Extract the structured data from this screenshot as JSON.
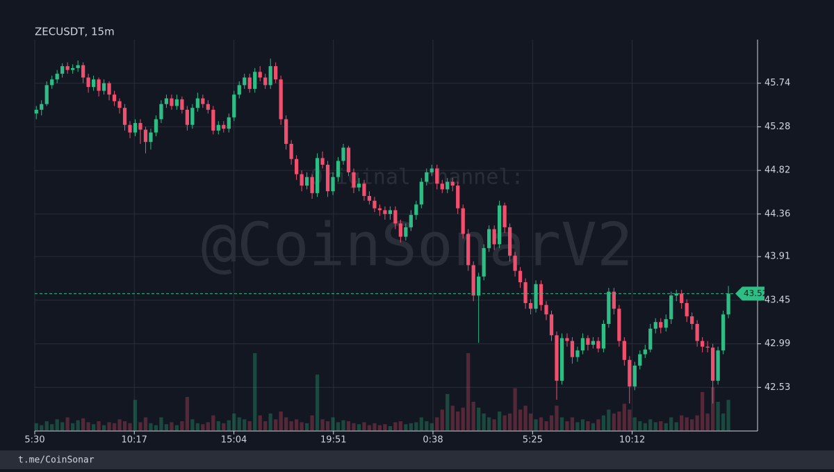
{
  "chart_data": {
    "type": "candlestick",
    "title": "ZECUSDT, 15m",
    "watermark": [
      "Original channel:",
      "@CoinSonarV2"
    ],
    "footer": "t.me/CoinSonar",
    "up_color": "#2ebd85",
    "down_color": "#f0506e",
    "grid": true,
    "ylim": [
      42.07,
      46.2
    ],
    "yticks": [
      42.53,
      42.99,
      43.45,
      43.91,
      44.36,
      44.82,
      45.28,
      45.74
    ],
    "xlim": [
      -0.3,
      138.6
    ],
    "xticks": [
      {
        "value": -0.3,
        "label": "5:30"
      },
      {
        "value": 18.83,
        "label": "10:17"
      },
      {
        "value": 37.97,
        "label": "15:04"
      },
      {
        "value": 57.1,
        "label": "19:51"
      },
      {
        "value": 76.23,
        "label": "0:38"
      },
      {
        "value": 95.37,
        "label": "5:25"
      },
      {
        "value": 114.5,
        "label": "10:12"
      }
    ],
    "volume_ylim": [
      0,
      100
    ],
    "candles": [
      [
        45.42,
        45.5,
        45.36,
        45.46,
        8
      ],
      [
        45.46,
        45.56,
        45.4,
        45.52,
        6
      ],
      [
        45.52,
        45.76,
        45.5,
        45.72,
        10
      ],
      [
        45.72,
        45.82,
        45.68,
        45.78,
        7
      ],
      [
        45.78,
        45.88,
        45.74,
        45.84,
        12
      ],
      [
        45.84,
        45.95,
        45.8,
        45.92,
        9
      ],
      [
        45.92,
        45.96,
        45.84,
        45.88,
        14
      ],
      [
        45.88,
        45.94,
        45.84,
        45.9,
        8
      ],
      [
        45.9,
        45.98,
        45.86,
        45.93,
        11
      ],
      [
        45.93,
        45.96,
        45.74,
        45.8,
        13
      ],
      [
        45.8,
        45.84,
        45.64,
        45.7,
        9
      ],
      [
        45.7,
        45.82,
        45.66,
        45.78,
        7
      ],
      [
        45.78,
        45.8,
        45.6,
        45.66,
        10
      ],
      [
        45.66,
        45.78,
        45.62,
        45.74,
        6
      ],
      [
        45.74,
        45.76,
        45.56,
        45.62,
        9
      ],
      [
        45.62,
        45.66,
        45.5,
        45.55,
        8
      ],
      [
        45.55,
        45.58,
        45.42,
        45.48,
        12
      ],
      [
        45.48,
        45.52,
        45.24,
        45.3,
        10
      ],
      [
        45.3,
        45.34,
        45.16,
        45.22,
        8
      ],
      [
        45.22,
        45.36,
        45.18,
        45.32,
        32
      ],
      [
        45.32,
        45.36,
        45.1,
        45.25,
        9
      ],
      [
        45.25,
        45.28,
        45.0,
        45.12,
        14
      ],
      [
        45.12,
        45.26,
        45.04,
        45.22,
        8
      ],
      [
        45.22,
        45.4,
        45.18,
        45.36,
        6
      ],
      [
        45.36,
        45.56,
        45.32,
        45.52,
        14
      ],
      [
        45.52,
        45.62,
        45.48,
        45.58,
        7
      ],
      [
        45.58,
        45.62,
        45.46,
        45.5,
        9
      ],
      [
        45.5,
        45.62,
        45.46,
        45.57,
        6
      ],
      [
        45.57,
        45.6,
        45.42,
        45.46,
        10
      ],
      [
        45.46,
        45.5,
        45.24,
        45.3,
        35
      ],
      [
        45.3,
        45.52,
        45.26,
        45.48,
        12
      ],
      [
        45.48,
        45.64,
        45.44,
        45.58,
        8
      ],
      [
        45.58,
        45.62,
        45.48,
        45.52,
        7
      ],
      [
        45.52,
        45.56,
        45.42,
        45.46,
        9
      ],
      [
        45.46,
        45.5,
        45.2,
        45.24,
        16
      ],
      [
        45.24,
        45.34,
        45.2,
        45.3,
        10
      ],
      [
        45.3,
        45.34,
        45.22,
        45.26,
        8
      ],
      [
        45.26,
        45.42,
        45.22,
        45.38,
        11
      ],
      [
        45.38,
        45.66,
        45.34,
        45.62,
        18
      ],
      [
        45.62,
        45.76,
        45.58,
        45.72,
        14
      ],
      [
        45.72,
        45.84,
        45.68,
        45.8,
        12
      ],
      [
        45.8,
        45.84,
        45.64,
        45.68,
        10
      ],
      [
        45.68,
        45.9,
        45.64,
        45.86,
        80
      ],
      [
        45.86,
        45.92,
        45.76,
        45.8,
        16
      ],
      [
        45.8,
        45.84,
        45.68,
        45.72,
        10
      ],
      [
        45.72,
        46.0,
        45.68,
        45.92,
        18
      ],
      [
        45.92,
        45.96,
        45.74,
        45.78,
        12
      ],
      [
        45.78,
        45.82,
        45.3,
        45.36,
        20
      ],
      [
        45.36,
        45.4,
        45.04,
        45.1,
        14
      ],
      [
        45.1,
        45.14,
        44.88,
        44.94,
        10
      ],
      [
        44.94,
        44.98,
        44.72,
        44.78,
        12
      ],
      [
        44.78,
        44.82,
        44.6,
        44.66,
        9
      ],
      [
        44.66,
        44.8,
        44.62,
        44.75,
        8
      ],
      [
        44.75,
        44.78,
        44.52,
        44.58,
        16
      ],
      [
        44.58,
        45.0,
        44.54,
        44.95,
        58
      ],
      [
        44.95,
        45.02,
        44.84,
        44.88,
        12
      ],
      [
        44.88,
        44.92,
        44.54,
        44.6,
        10
      ],
      [
        44.6,
        44.8,
        44.56,
        44.75,
        14
      ],
      [
        44.75,
        44.96,
        44.7,
        44.92,
        9
      ],
      [
        44.92,
        45.1,
        44.88,
        45.06,
        11
      ],
      [
        45.06,
        45.08,
        44.76,
        44.8,
        10
      ],
      [
        44.8,
        44.84,
        44.58,
        44.64,
        8
      ],
      [
        44.64,
        44.74,
        44.6,
        44.68,
        7
      ],
      [
        44.68,
        44.72,
        44.5,
        44.55,
        9
      ],
      [
        44.55,
        44.6,
        44.46,
        44.5,
        6
      ],
      [
        44.5,
        44.54,
        44.38,
        44.42,
        8
      ],
      [
        44.42,
        44.46,
        44.34,
        44.4,
        6
      ],
      [
        44.4,
        44.44,
        44.3,
        44.36,
        7
      ],
      [
        44.36,
        44.44,
        44.3,
        44.4,
        5
      ],
      [
        44.4,
        44.44,
        44.2,
        44.26,
        9
      ],
      [
        44.26,
        44.3,
        44.06,
        44.12,
        10
      ],
      [
        44.12,
        44.26,
        44.08,
        44.22,
        7
      ],
      [
        44.22,
        44.4,
        44.18,
        44.35,
        8
      ],
      [
        44.35,
        44.5,
        44.3,
        44.46,
        9
      ],
      [
        44.46,
        44.74,
        44.42,
        44.7,
        14
      ],
      [
        44.7,
        44.84,
        44.66,
        44.8,
        10
      ],
      [
        44.8,
        44.88,
        44.76,
        44.84,
        8
      ],
      [
        44.84,
        44.88,
        44.62,
        44.68,
        14
      ],
      [
        44.68,
        44.72,
        44.58,
        44.62,
        22
      ],
      [
        44.62,
        44.74,
        44.58,
        44.7,
        38
      ],
      [
        44.7,
        44.74,
        44.6,
        44.66,
        26
      ],
      [
        44.66,
        44.7,
        44.36,
        44.42,
        20
      ],
      [
        44.42,
        44.46,
        44.1,
        44.15,
        24
      ],
      [
        44.15,
        44.2,
        43.76,
        43.82,
        80
      ],
      [
        43.82,
        43.86,
        43.44,
        43.5,
        30
      ],
      [
        43.5,
        43.74,
        43.0,
        43.7,
        24
      ],
      [
        43.7,
        44.04,
        43.66,
        44.0,
        18
      ],
      [
        44.0,
        44.24,
        43.96,
        44.2,
        14
      ],
      [
        44.2,
        44.24,
        43.98,
        44.04,
        12
      ],
      [
        44.04,
        44.5,
        44.0,
        44.45,
        20
      ],
      [
        44.45,
        44.48,
        44.16,
        44.22,
        16
      ],
      [
        44.22,
        44.26,
        43.86,
        43.92,
        18
      ],
      [
        43.92,
        43.96,
        43.7,
        43.76,
        44
      ],
      [
        43.76,
        43.8,
        43.58,
        43.64,
        22
      ],
      [
        43.64,
        43.68,
        43.36,
        43.42,
        26
      ],
      [
        43.42,
        43.46,
        43.3,
        43.36,
        18
      ],
      [
        43.36,
        43.66,
        43.32,
        43.62,
        12
      ],
      [
        43.62,
        43.66,
        43.34,
        43.4,
        14
      ],
      [
        43.4,
        43.44,
        43.24,
        43.3,
        10
      ],
      [
        43.3,
        43.34,
        43.02,
        43.08,
        16
      ],
      [
        43.08,
        43.12,
        42.4,
        42.6,
        26
      ],
      [
        42.6,
        43.1,
        42.56,
        43.05,
        14
      ],
      [
        43.05,
        43.1,
        42.96,
        43.02,
        10
      ],
      [
        43.02,
        43.06,
        42.78,
        42.85,
        14
      ],
      [
        42.85,
        42.96,
        42.8,
        42.92,
        9
      ],
      [
        42.92,
        43.1,
        42.88,
        43.05,
        12
      ],
      [
        43.05,
        43.08,
        42.92,
        42.98,
        10
      ],
      [
        42.98,
        43.06,
        42.94,
        43.02,
        8
      ],
      [
        43.02,
        43.06,
        42.9,
        42.94,
        12
      ],
      [
        42.94,
        43.24,
        42.9,
        43.2,
        16
      ],
      [
        43.2,
        43.58,
        43.16,
        43.54,
        22
      ],
      [
        43.54,
        43.58,
        43.3,
        43.36,
        18
      ],
      [
        43.36,
        43.4,
        42.96,
        43.02,
        20
      ],
      [
        43.02,
        43.06,
        42.76,
        42.82,
        28
      ],
      [
        42.82,
        42.86,
        42.36,
        42.54,
        22
      ],
      [
        42.54,
        42.8,
        42.5,
        42.76,
        14
      ],
      [
        42.76,
        42.92,
        42.72,
        42.88,
        10
      ],
      [
        42.88,
        42.98,
        42.84,
        42.93,
        8
      ],
      [
        42.93,
        43.2,
        42.9,
        43.15,
        12
      ],
      [
        43.15,
        43.26,
        43.1,
        43.22,
        9
      ],
      [
        43.22,
        43.26,
        43.1,
        43.16,
        10
      ],
      [
        43.16,
        43.3,
        43.12,
        43.25,
        8
      ],
      [
        43.25,
        43.54,
        43.2,
        43.5,
        14
      ],
      [
        43.5,
        43.56,
        43.44,
        43.52,
        9
      ],
      [
        43.52,
        43.56,
        43.36,
        43.42,
        16
      ],
      [
        43.42,
        43.46,
        43.22,
        43.28,
        14
      ],
      [
        43.28,
        43.32,
        43.14,
        43.2,
        12
      ],
      [
        43.2,
        43.24,
        42.96,
        43.02,
        16
      ],
      [
        43.02,
        43.06,
        42.9,
        42.96,
        40
      ],
      [
        42.96,
        43.02,
        42.9,
        42.95,
        18
      ],
      [
        42.95,
        42.99,
        42.36,
        42.6,
        45
      ],
      [
        42.6,
        42.96,
        42.56,
        42.92,
        30
      ],
      [
        42.92,
        43.34,
        42.88,
        43.3,
        18
      ],
      [
        43.3,
        43.6,
        43.26,
        43.52,
        32
      ]
    ]
  }
}
